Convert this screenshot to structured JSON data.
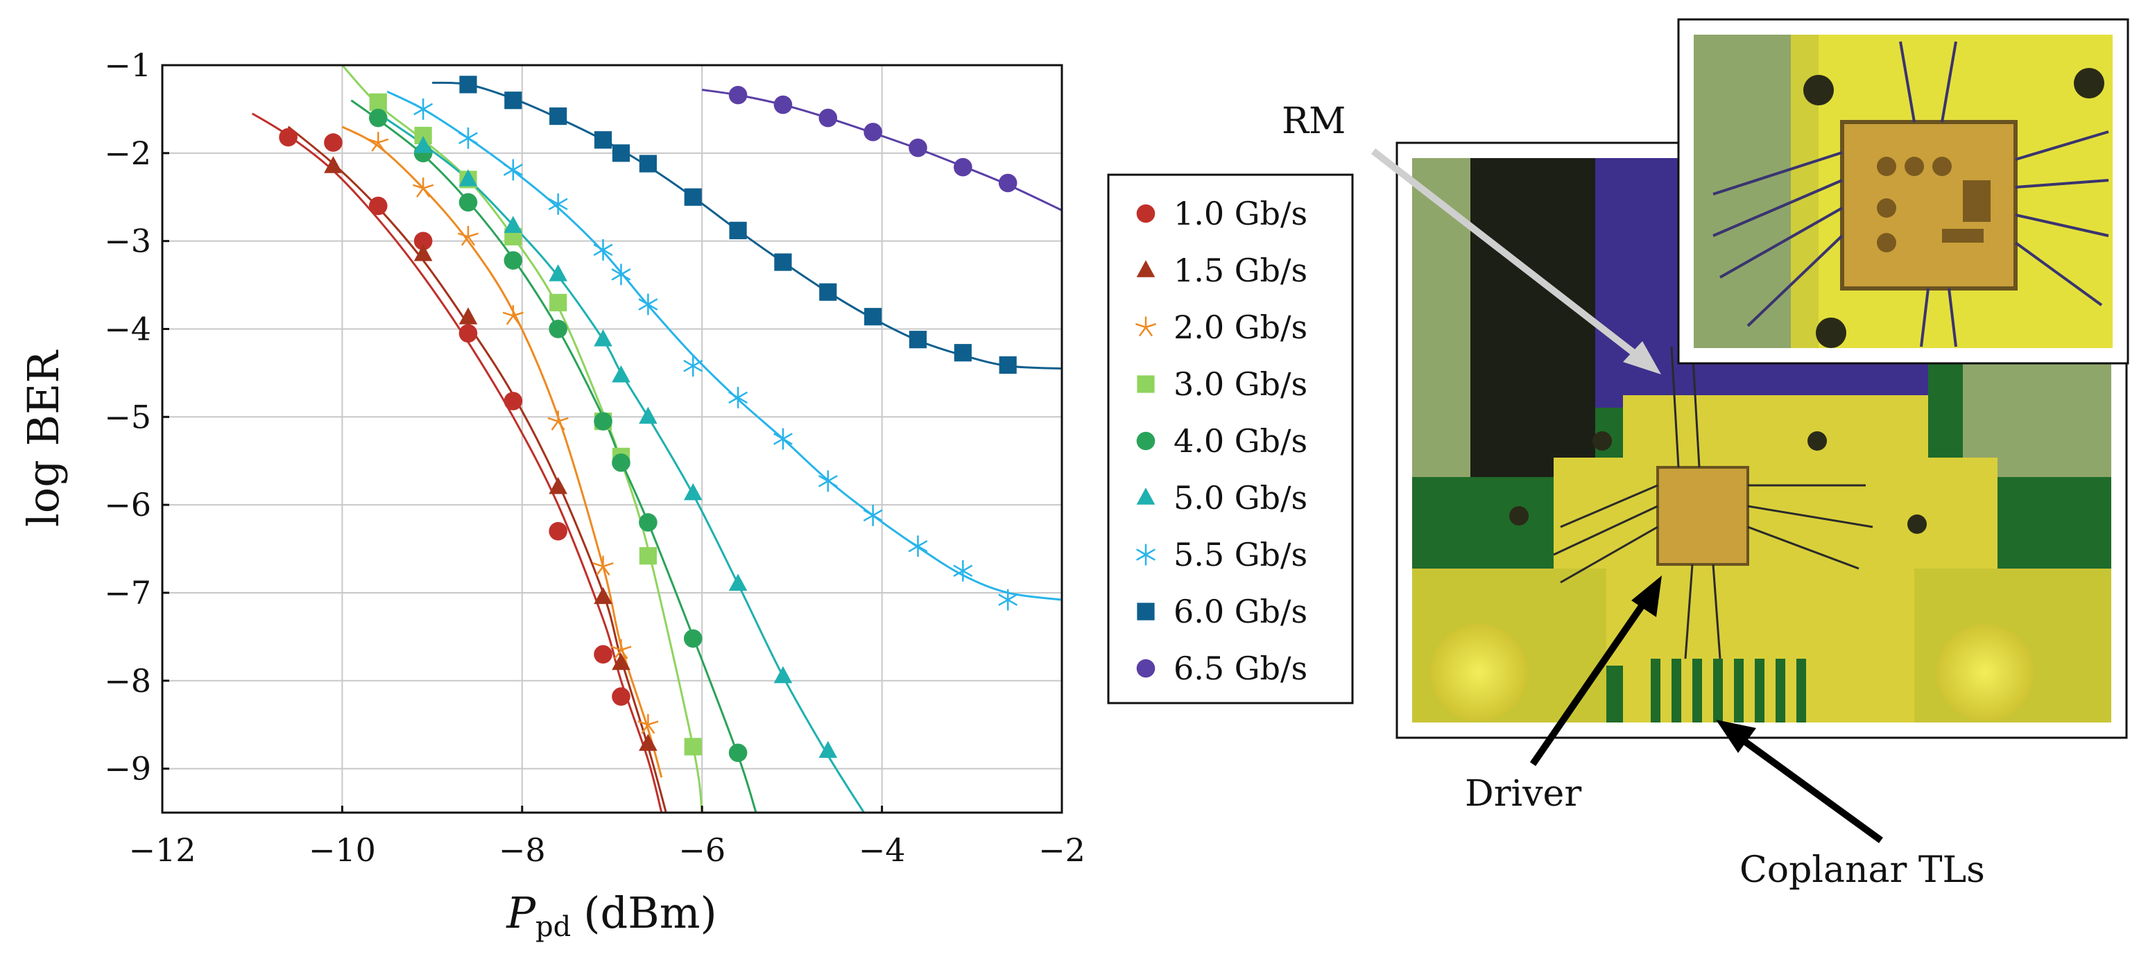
{
  "chart_data": {
    "type": "scatter",
    "xlabel": "P",
    "xlabel_sub": "pd",
    "xlabel_unit": "(dBm)",
    "ylabel": "log BER",
    "xlim": [
      -12,
      -2
    ],
    "ylim": [
      -9.5,
      -1
    ],
    "xticks": [
      -12,
      -10,
      -8,
      -6,
      -4,
      -2
    ],
    "yticks": [
      -1,
      -2,
      -3,
      -4,
      -5,
      -6,
      -7,
      -8,
      -9
    ],
    "grid": true,
    "legend_position": "right",
    "series": [
      {
        "name": "1.0 Gb/s",
        "marker": "circle",
        "color": "#c0302a",
        "x": [
          -10.6,
          -10.1,
          -9.6,
          -9.1,
          -8.6,
          -8.1,
          -7.6,
          -7.1,
          -6.9
        ],
        "y": [
          -1.82,
          -1.88,
          -2.6,
          -3.0,
          -4.05,
          -4.82,
          -6.3,
          -7.7,
          -8.18
        ]
      },
      {
        "name": "1.5 Gb/s",
        "marker": "triangle",
        "color": "#a4331c",
        "x": [
          -10.1,
          -9.1,
          -8.6,
          -7.6,
          -7.1,
          -6.9,
          -6.6
        ],
        "y": [
          -2.15,
          -3.15,
          -3.87,
          -5.8,
          -7.05,
          -7.8,
          -8.72
        ]
      },
      {
        "name": "2.0 Gb/s",
        "marker": "star",
        "color": "#ee8a22",
        "x": [
          -9.6,
          -9.1,
          -8.6,
          -8.1,
          -7.6,
          -7.1,
          -6.9,
          -6.6
        ],
        "y": [
          -1.88,
          -2.4,
          -2.95,
          -3.85,
          -5.05,
          -6.7,
          -7.65,
          -8.5
        ]
      },
      {
        "name": "3.0 Gb/s",
        "marker": "square",
        "color": "#8fd45e",
        "x": [
          -9.6,
          -9.1,
          -8.6,
          -8.1,
          -7.6,
          -7.1,
          -6.9,
          -6.6,
          -6.1
        ],
        "y": [
          -1.42,
          -1.8,
          -2.3,
          -2.95,
          -3.7,
          -5.05,
          -5.45,
          -6.58,
          -8.75
        ]
      },
      {
        "name": "4.0 Gb/s",
        "marker": "circle",
        "color": "#2aa35a",
        "x": [
          -9.6,
          -9.1,
          -8.6,
          -8.1,
          -7.6,
          -7.1,
          -6.9,
          -6.6,
          -6.1,
          -5.6
        ],
        "y": [
          -1.6,
          -2.0,
          -2.56,
          -3.22,
          -4.0,
          -5.05,
          -5.52,
          -6.2,
          -7.52,
          -8.82
        ]
      },
      {
        "name": "5.0 Gb/s",
        "marker": "triangle",
        "color": "#1fb0b0",
        "x": [
          -9.1,
          -8.6,
          -8.1,
          -7.6,
          -7.1,
          -6.9,
          -6.6,
          -6.1,
          -5.6,
          -5.1,
          -4.6
        ],
        "y": [
          -1.92,
          -2.3,
          -2.83,
          -3.38,
          -4.12,
          -4.53,
          -5.0,
          -5.87,
          -6.9,
          -7.95,
          -8.8
        ]
      },
      {
        "name": "5.5 Gb/s",
        "marker": "asterisk",
        "color": "#27b4ea",
        "x": [
          -9.1,
          -8.6,
          -8.1,
          -7.6,
          -7.1,
          -6.9,
          -6.6,
          -6.1,
          -5.6,
          -5.1,
          -4.6,
          -4.1,
          -3.6,
          -3.1,
          -2.6
        ],
        "y": [
          -1.5,
          -1.83,
          -2.19,
          -2.58,
          -3.1,
          -3.38,
          -3.72,
          -4.42,
          -4.78,
          -5.25,
          -5.73,
          -6.12,
          -6.47,
          -6.75,
          -7.08
        ]
      },
      {
        "name": "6.0 Gb/s",
        "marker": "square",
        "color": "#0e5f8e",
        "x": [
          -8.6,
          -8.1,
          -7.6,
          -7.1,
          -6.9,
          -6.6,
          -6.1,
          -5.6,
          -5.1,
          -4.6,
          -4.1,
          -3.6,
          -3.1,
          -2.6
        ],
        "y": [
          -1.22,
          -1.4,
          -1.58,
          -1.85,
          -2.0,
          -2.12,
          -2.5,
          -2.88,
          -3.24,
          -3.58,
          -3.86,
          -4.12,
          -4.27,
          -4.41
        ]
      },
      {
        "name": "6.5 Gb/s",
        "marker": "circle",
        "color": "#5a3fa6",
        "x": [
          -5.6,
          -5.1,
          -4.6,
          -4.1,
          -3.6,
          -3.1,
          -2.6
        ],
        "y": [
          -1.34,
          -1.45,
          -1.6,
          -1.76,
          -1.94,
          -2.16,
          -2.34
        ]
      }
    ],
    "fits": [
      {
        "color": "#c0302a",
        "x": [
          -11.0,
          -10.6,
          -10.1,
          -9.6,
          -9.1,
          -8.6,
          -8.1,
          -7.6,
          -7.1,
          -6.9,
          -6.6,
          -6.45
        ],
        "y": [
          -1.55,
          -1.8,
          -2.2,
          -2.75,
          -3.4,
          -4.15,
          -5.0,
          -6.0,
          -7.3,
          -8.0,
          -8.9,
          -9.5
        ]
      },
      {
        "color": "#a4331c",
        "x": [
          -10.6,
          -10.1,
          -9.6,
          -9.1,
          -8.6,
          -8.1,
          -7.6,
          -7.1,
          -6.9,
          -6.6,
          -6.4
        ],
        "y": [
          -1.7,
          -2.12,
          -2.62,
          -3.22,
          -3.95,
          -4.75,
          -5.75,
          -7.0,
          -7.75,
          -8.75,
          -9.5
        ]
      },
      {
        "color": "#ee8a22",
        "x": [
          -10.0,
          -9.6,
          -9.1,
          -8.6,
          -8.1,
          -7.6,
          -7.1,
          -6.9,
          -6.6,
          -6.45
        ],
        "y": [
          -1.7,
          -1.92,
          -2.4,
          -3.0,
          -3.8,
          -5.0,
          -6.7,
          -7.6,
          -8.55,
          -9.1
        ]
      },
      {
        "color": "#8fd45e",
        "x": [
          -10.0,
          -9.6,
          -9.1,
          -8.6,
          -8.1,
          -7.6,
          -7.1,
          -6.9,
          -6.6,
          -6.1,
          -6.0
        ],
        "y": [
          -1.0,
          -1.45,
          -1.85,
          -2.3,
          -2.95,
          -3.75,
          -4.95,
          -5.5,
          -6.5,
          -8.75,
          -9.5
        ]
      },
      {
        "color": "#2aa35a",
        "x": [
          -9.9,
          -9.6,
          -9.1,
          -8.6,
          -8.1,
          -7.6,
          -7.1,
          -6.9,
          -6.6,
          -6.1,
          -5.6,
          -5.4
        ],
        "y": [
          -1.4,
          -1.62,
          -2.02,
          -2.55,
          -3.2,
          -4.0,
          -5.0,
          -5.5,
          -6.2,
          -7.5,
          -8.85,
          -9.5
        ]
      },
      {
        "color": "#1fb0b0",
        "x": [
          -9.6,
          -9.1,
          -8.6,
          -8.1,
          -7.6,
          -7.1,
          -6.9,
          -6.6,
          -6.1,
          -5.6,
          -5.1,
          -4.6,
          -4.2
        ],
        "y": [
          -1.55,
          -1.9,
          -2.3,
          -2.82,
          -3.4,
          -4.12,
          -4.5,
          -5.0,
          -5.88,
          -6.9,
          -7.95,
          -8.85,
          -9.5
        ]
      },
      {
        "color": "#27b4ea",
        "x": [
          -9.5,
          -9.1,
          -8.6,
          -8.1,
          -7.6,
          -7.1,
          -6.6,
          -6.1,
          -5.6,
          -5.1,
          -4.6,
          -4.1,
          -3.6,
          -3.1,
          -2.6,
          -2.0
        ],
        "y": [
          -1.3,
          -1.5,
          -1.83,
          -2.2,
          -2.62,
          -3.12,
          -3.73,
          -4.3,
          -4.8,
          -5.25,
          -5.72,
          -6.12,
          -6.48,
          -6.8,
          -7.0,
          -7.08
        ]
      },
      {
        "color": "#0e5f8e",
        "x": [
          -9.0,
          -8.6,
          -8.1,
          -7.6,
          -7.1,
          -6.6,
          -6.1,
          -5.6,
          -5.1,
          -4.6,
          -4.1,
          -3.6,
          -3.1,
          -2.6,
          -2.0
        ],
        "y": [
          -1.2,
          -1.22,
          -1.38,
          -1.6,
          -1.85,
          -2.15,
          -2.5,
          -2.88,
          -3.24,
          -3.58,
          -3.88,
          -4.13,
          -4.3,
          -4.42,
          -4.45
        ]
      },
      {
        "color": "#5a3fa6",
        "x": [
          -6.0,
          -5.6,
          -5.1,
          -4.6,
          -4.1,
          -3.6,
          -3.1,
          -2.6,
          -2.0
        ],
        "y": [
          -1.28,
          -1.34,
          -1.45,
          -1.6,
          -1.77,
          -1.95,
          -2.15,
          -2.36,
          -2.65
        ]
      }
    ]
  },
  "photo": {
    "labels": {
      "rm": "RM",
      "driver": "Driver",
      "tls": "Coplanar TLs"
    },
    "colors": {
      "board_green": "#1f6b2a",
      "gold": "#d9cf3a",
      "chip": "#c9a03b",
      "blue_region": "#3d2f8c"
    }
  }
}
